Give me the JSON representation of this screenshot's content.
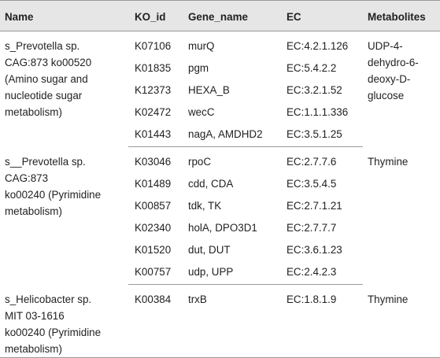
{
  "table": {
    "headers": [
      "Name",
      "KO_id",
      "Gene_name",
      "EC",
      "Metabolites"
    ],
    "groups": [
      {
        "name_lines": [
          "s_Prevotella sp.",
          "CAG:873 ko00520",
          "(Amino sugar and",
          "nucleotide sugar",
          "metabolism)"
        ],
        "metabolite_lines": [
          "UDP-4-",
          "dehydro-6-",
          "deoxy-D-",
          "glucose"
        ],
        "rows": [
          {
            "ko": "K07106",
            "gene": "murQ",
            "ec": "EC:4.2.1.126"
          },
          {
            "ko": "K01835",
            "gene": "pgm",
            "ec": "EC:5.4.2.2"
          },
          {
            "ko": "K12373",
            "gene": "HEXA_B",
            "ec": "EC:3.2.1.52"
          },
          {
            "ko": "K02472",
            "gene": "wecC",
            "ec": "EC:1.1.1.336"
          },
          {
            "ko": "K01443",
            "gene": "nagA, AMDHD2",
            "ec": "EC:3.5.1.25"
          }
        ]
      },
      {
        "name_lines": [
          "s__Prevotella sp.",
          "CAG:873",
          "ko00240 (Pyrimidine",
          "metabolism)"
        ],
        "metabolite_lines": [
          "Thymine"
        ],
        "rows": [
          {
            "ko": "K03046",
            "gene": "rpoC",
            "ec": "EC:2.7.7.6"
          },
          {
            "ko": "K01489",
            "gene": "cdd, CDA",
            "ec": "EC:3.5.4.5"
          },
          {
            "ko": "K00857",
            "gene": "tdk, TK",
            "ec": "EC:2.7.1.21"
          },
          {
            "ko": "K02340",
            "gene": "holA, DPO3D1",
            "ec": "EC:2.7.7.7"
          },
          {
            "ko": "K01520",
            "gene": "dut, DUT",
            "ec": "EC:3.6.1.23"
          },
          {
            "ko": "K00757",
            "gene": "udp, UPP",
            "ec": "EC:2.4.2.3"
          }
        ]
      },
      {
        "name_lines": [
          "s_Helicobacter sp.",
          "MIT 03-1616",
          "ko00240 (Pyrimidine",
          "metabolism)"
        ],
        "metabolite_lines": [
          "Thymine"
        ],
        "rows": [
          {
            "ko": "K00384",
            "gene": "trxB",
            "ec": "EC:1.8.1.9"
          }
        ]
      }
    ]
  }
}
